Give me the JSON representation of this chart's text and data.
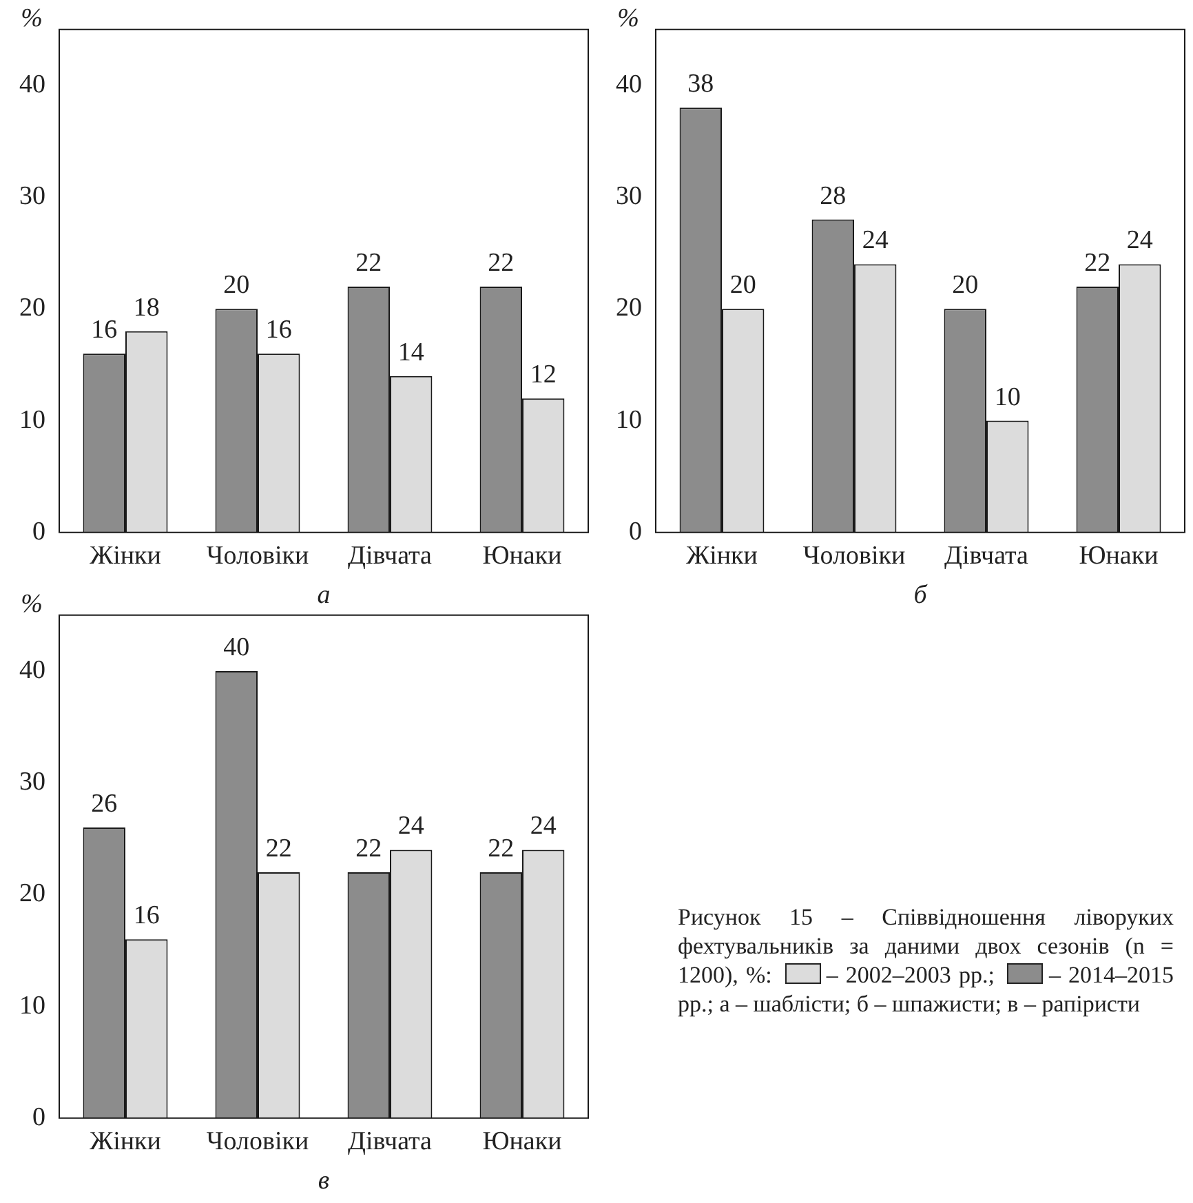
{
  "chart_data": [
    {
      "type": "bar",
      "xlabel": "а",
      "ylabel": "%",
      "categories": [
        "Жінки",
        "Чоловіки",
        "Дівчата",
        "Юнаки"
      ],
      "series": [
        {
          "color": "#8c8c8c",
          "values": [
            16,
            20,
            22,
            22
          ]
        },
        {
          "color": "#dcdcdc",
          "values": [
            18,
            16,
            14,
            12
          ]
        }
      ],
      "ylim": [
        0,
        45
      ],
      "yticks": [
        0,
        10,
        20,
        30,
        40
      ],
      "grid": false,
      "data_labels": true,
      "legend": false
    },
    {
      "type": "bar",
      "xlabel": "б",
      "ylabel": "%",
      "categories": [
        "Жінки",
        "Чоловіки",
        "Дівчата",
        "Юнаки"
      ],
      "series": [
        {
          "color": "#8c8c8c",
          "values": [
            38,
            28,
            20,
            22
          ]
        },
        {
          "color": "#dcdcdc",
          "values": [
            20,
            24,
            10,
            24
          ]
        }
      ],
      "ylim": [
        0,
        45
      ],
      "yticks": [
        0,
        10,
        20,
        30,
        40
      ],
      "grid": false,
      "data_labels": true,
      "legend": false
    },
    {
      "type": "bar",
      "xlabel": "в",
      "ylabel": "%",
      "categories": [
        "Жінки",
        "Чоловіки",
        "Дівчата",
        "Юнаки"
      ],
      "series": [
        {
          "color": "#8c8c8c",
          "values": [
            26,
            40,
            22,
            22
          ]
        },
        {
          "color": "#dcdcdc",
          "values": [
            16,
            22,
            24,
            24
          ]
        }
      ],
      "ylim": [
        0,
        45
      ],
      "yticks": [
        0,
        10,
        20,
        30,
        40
      ],
      "grid": false,
      "data_labels": true,
      "legend": false,
      "annotations": [
        "Рисунок 15 – Співвідношення ліворуких фехтувальників за даними двох сезонів (n = 1200), %:",
        "– 2002–2003 рр.;",
        "– 2014–2015 рр.;",
        "а – шаблісти; б – шпажисти; в – рапіристи"
      ]
    }
  ]
}
